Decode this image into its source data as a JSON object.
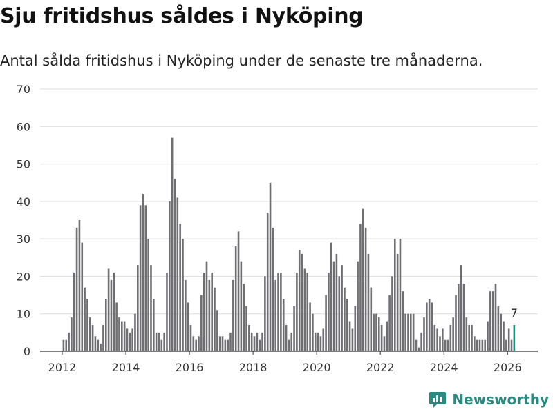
{
  "header": {
    "title": "Sju fritidshus såldes i Nyköping",
    "subtitle": "Antal sålda fritidshus i Nyköping under de senaste tre månaderna."
  },
  "brand": {
    "name": "Newsworthy",
    "icon": "newsworthy-logo-icon",
    "color": "#2a8a82"
  },
  "colors": {
    "bar": "#6f6e73",
    "highlight": "#1f8f86",
    "grid": "#dcdcdc",
    "axis": "#333333"
  },
  "chart_data": {
    "type": "bar",
    "title": "Sju fritidshus såldes i Nyköping",
    "subtitle": "Antal sålda fritidshus i Nyköping under de senaste tre månaderna.",
    "xlabel": "",
    "ylabel": "",
    "ylim": [
      0,
      70
    ],
    "yticks": [
      0,
      10,
      20,
      30,
      40,
      50,
      60,
      70
    ],
    "xticks": [
      "2012",
      "2014",
      "2016",
      "2018",
      "2020",
      "2022",
      "2024",
      "2026"
    ],
    "grid": true,
    "x_start_year": 2012,
    "x_start_month": 1,
    "values": [
      3,
      3,
      5,
      9,
      21,
      33,
      35,
      29,
      17,
      14,
      9,
      7,
      4,
      3,
      2,
      7,
      14,
      22,
      19,
      21,
      13,
      9,
      8,
      8,
      6,
      5,
      6,
      10,
      23,
      39,
      42,
      39,
      30,
      23,
      14,
      5,
      5,
      3,
      5,
      21,
      40,
      57,
      46,
      41,
      34,
      30,
      19,
      13,
      7,
      4,
      3,
      4,
      15,
      21,
      24,
      19,
      21,
      17,
      11,
      4,
      4,
      3,
      3,
      5,
      19,
      28,
      32,
      24,
      18,
      12,
      7,
      5,
      4,
      5,
      3,
      5,
      20,
      37,
      45,
      33,
      19,
      21,
      21,
      14,
      7,
      3,
      5,
      12,
      21,
      27,
      26,
      22,
      21,
      13,
      10,
      5,
      5,
      4,
      6,
      15,
      21,
      29,
      24,
      26,
      20,
      23,
      17,
      14,
      8,
      6,
      12,
      24,
      34,
      38,
      33,
      26,
      17,
      10,
      10,
      9,
      7,
      4,
      8,
      15,
      20,
      30,
      26,
      30,
      16,
      10,
      10,
      10,
      10,
      3,
      1,
      5,
      9,
      13,
      14,
      13,
      7,
      6,
      4,
      6,
      3,
      3,
      7,
      9,
      15,
      18,
      23,
      18,
      9,
      7,
      7,
      4,
      3,
      3,
      3,
      3,
      8,
      16,
      16,
      18,
      12,
      10,
      8,
      3,
      6,
      3,
      7
    ],
    "highlight_last": true,
    "annotation": {
      "text": "7",
      "target": "last bar"
    }
  }
}
